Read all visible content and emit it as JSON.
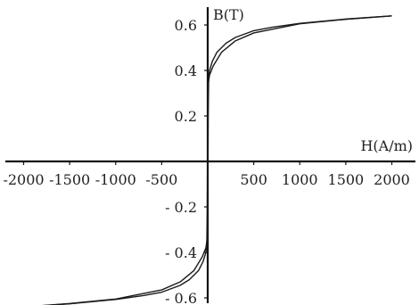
{
  "chart_data": {
    "type": "line",
    "title": "",
    "xlabel": "H(A/m)",
    "ylabel": "B(T)",
    "xlim": [
      -2150,
      2150
    ],
    "ylim": [
      -0.68,
      0.68
    ],
    "x_ticks": [
      {
        "value": -2000,
        "label": "-2000"
      },
      {
        "value": -1500,
        "label": "-1500"
      },
      {
        "value": -1000,
        "label": "-1000"
      },
      {
        "value": -500,
        "label": "-500"
      },
      {
        "value": 500,
        "label": "500"
      },
      {
        "value": 1000,
        "label": "1000"
      },
      {
        "value": 1500,
        "label": "1500"
      },
      {
        "value": 2000,
        "label": "2000"
      }
    ],
    "y_ticks": [
      {
        "value": 0.6,
        "label": "0.6"
      },
      {
        "value": 0.4,
        "label": "0.4"
      },
      {
        "value": 0.2,
        "label": "0.2"
      },
      {
        "value": -0.2,
        "label": "- 0.2"
      },
      {
        "value": -0.4,
        "label": "- 0.4"
      },
      {
        "value": -0.6,
        "label": "- 0.6"
      }
    ],
    "grid": false,
    "legend": "none",
    "series": [
      {
        "x": [
          -2000,
          -1500,
          -1000,
          -500,
          -300,
          -150,
          -60,
          -20,
          -5,
          0,
          5,
          10,
          20,
          50,
          100,
          200,
          300,
          500,
          700,
          1000,
          1500,
          2000
        ],
        "y": [
          -0.64,
          -0.625,
          -0.605,
          -0.565,
          -0.53,
          -0.48,
          -0.42,
          -0.38,
          -0.34,
          -0.2,
          0.2,
          0.36,
          0.4,
          0.44,
          0.48,
          0.52,
          0.545,
          0.575,
          0.59,
          0.607,
          0.626,
          0.64
        ]
      },
      {
        "x": [
          -2000,
          -1500,
          -1000,
          -700,
          -500,
          -300,
          -200,
          -100,
          -50,
          -20,
          -10,
          -5,
          0,
          5,
          20,
          60,
          150,
          300,
          500,
          1000,
          1500,
          2000
        ],
        "y": [
          -0.64,
          -0.626,
          -0.607,
          -0.59,
          -0.575,
          -0.545,
          -0.52,
          -0.48,
          -0.44,
          -0.4,
          -0.36,
          -0.2,
          0.2,
          0.34,
          0.38,
          0.42,
          0.48,
          0.53,
          0.565,
          0.605,
          0.625,
          0.64
        ]
      }
    ]
  }
}
